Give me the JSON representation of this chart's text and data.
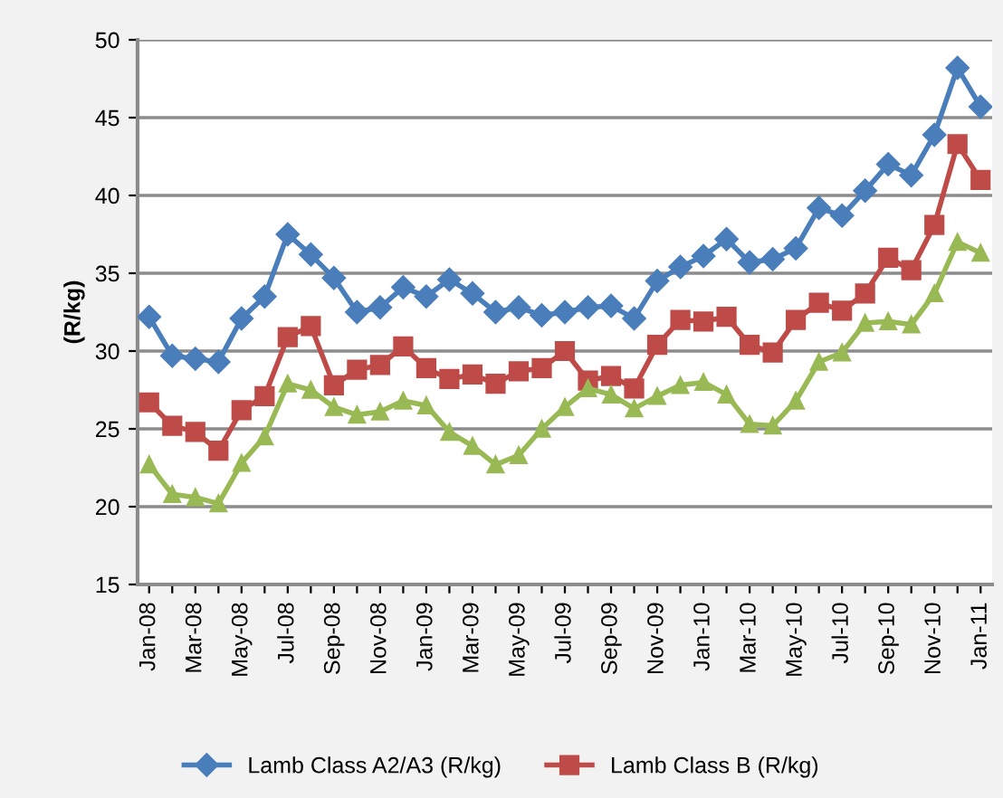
{
  "chart_data": {
    "type": "line",
    "ylabel": "(R/kg)",
    "categories": [
      "Jan-08",
      null,
      "Mar-08",
      null,
      "May-08",
      null,
      "Jul-08",
      null,
      "Sep-08",
      null,
      "Nov-08",
      null,
      "Jan-09",
      null,
      "Mar-09",
      null,
      "May-09",
      null,
      "Jul-09",
      null,
      "Sep-09",
      null,
      "Nov-09",
      null,
      "Jan-10",
      null,
      "Mar-10",
      null,
      "May-10",
      null,
      "Jul-10",
      null,
      "Sep-10",
      null,
      "Nov-10",
      null,
      "Jan-11"
    ],
    "series": [
      {
        "name": "Lamb Class A2/A3 (R/kg)",
        "color": "#4a7ebb",
        "marker": "diamond",
        "values": [
          32.2,
          29.7,
          29.5,
          29.3,
          32.1,
          33.5,
          37.5,
          36.2,
          34.7,
          32.5,
          32.8,
          34.1,
          33.5,
          34.6,
          33.7,
          32.5,
          32.8,
          32.3,
          32.5,
          32.8,
          32.9,
          32.1,
          34.5,
          35.4,
          36.1,
          37.2,
          35.7,
          35.9,
          36.6,
          39.2,
          38.7,
          40.3,
          42.0,
          41.3,
          43.9,
          48.2,
          45.7
        ]
      },
      {
        "name": "Lamb Class B (R/kg)",
        "color": "#be4b48",
        "marker": "square",
        "values": [
          26.7,
          25.2,
          24.8,
          23.6,
          26.2,
          27.1,
          30.9,
          31.6,
          27.8,
          28.8,
          29.1,
          30.3,
          28.9,
          28.2,
          28.5,
          27.9,
          28.7,
          28.9,
          30.0,
          28.1,
          28.4,
          27.6,
          30.4,
          32.0,
          31.9,
          32.2,
          30.4,
          29.9,
          32.0,
          33.1,
          32.6,
          33.7,
          36.0,
          35.2,
          38.1,
          43.3,
          41.0
        ]
      },
      {
        "color": "#98b954",
        "marker": "triangle",
        "values": [
          22.7,
          20.8,
          20.6,
          20.2,
          22.8,
          24.5,
          27.9,
          27.5,
          26.4,
          25.9,
          26.1,
          26.8,
          26.5,
          24.8,
          23.9,
          22.7,
          23.3,
          25.0,
          26.4,
          27.6,
          27.2,
          26.3,
          27.1,
          27.8,
          28.0,
          27.2,
          25.3,
          25.2,
          26.8,
          29.3,
          29.9,
          31.8,
          31.9,
          31.7,
          33.7,
          37.0,
          36.3
        ]
      }
    ],
    "ylim": [
      15,
      50
    ],
    "yticks": [
      15,
      20,
      25,
      30,
      35,
      40,
      45,
      50
    ],
    "grid": "y",
    "legend": "bottom"
  }
}
